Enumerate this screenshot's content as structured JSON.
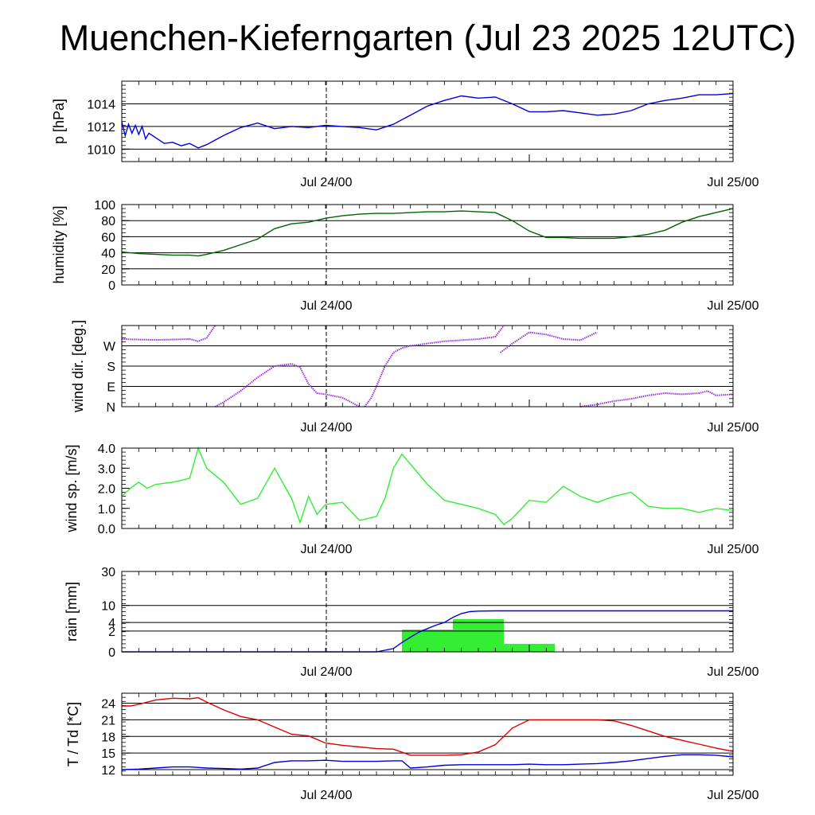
{
  "title": "Muenchen-Kieferngarten (Jul 23 2025 12UTC)",
  "colors": {
    "pressure": "#0000dd",
    "humidity": "#006400",
    "wind_dir": "#9a30d8",
    "wind_speed": "#33ee33",
    "rain_bar": "#33ee33",
    "rain_cum": "#0000dd",
    "temperature": "#dd0000",
    "dewpoint": "#0000dd"
  },
  "chart_data": [
    {
      "type": "line",
      "name": "pressure",
      "ylabel": "p [hPa]",
      "ylim": [
        1008.9,
        1016.0
      ],
      "y_ticks": [
        1010,
        1012,
        1014
      ],
      "y_tick_labels": [
        "1010",
        "1012",
        "1014"
      ],
      "grid_y": [
        1010,
        1012,
        1014
      ],
      "x_tick_labels": [
        "Jul 24/00",
        "Jul 25/00"
      ],
      "x_range_h": [
        0,
        36
      ],
      "series": [
        {
          "color_key": "pressure",
          "x": [
            0,
            0.2,
            0.4,
            0.6,
            0.8,
            1,
            1.2,
            1.4,
            1.6,
            2,
            2.5,
            3,
            3.5,
            4,
            4.5,
            5,
            5.5,
            6,
            7,
            8,
            9,
            10,
            11,
            12,
            13,
            14,
            15,
            16,
            17,
            18,
            19,
            20,
            21,
            22,
            23,
            24,
            25,
            26,
            27,
            28,
            29,
            30,
            31,
            32,
            33,
            34,
            35,
            36
          ],
          "y": [
            1012.4,
            1011.2,
            1012.2,
            1011.4,
            1012.1,
            1011.3,
            1012.0,
            1010.9,
            1011.4,
            1011.0,
            1010.5,
            1010.6,
            1010.3,
            1010.5,
            1010.1,
            1010.4,
            1010.8,
            1011.2,
            1011.9,
            1012.3,
            1011.8,
            1012.0,
            1011.9,
            1012.1,
            1012.0,
            1011.9,
            1011.7,
            1012.2,
            1013.0,
            1013.8,
            1014.3,
            1014.7,
            1014.5,
            1014.6,
            1014.0,
            1013.3,
            1013.3,
            1013.4,
            1013.2,
            1013.0,
            1013.1,
            1013.4,
            1014.0,
            1014.3,
            1014.5,
            1014.8,
            1014.8,
            1014.9
          ]
        }
      ]
    },
    {
      "type": "line",
      "name": "humidity",
      "ylabel": "humidity [%]",
      "ylim": [
        0,
        100
      ],
      "y_ticks": [
        0,
        20,
        40,
        60,
        80,
        100
      ],
      "y_tick_labels": [
        "0",
        "20",
        "40",
        "60",
        "80",
        "100"
      ],
      "grid_y": [
        20,
        40,
        60,
        80
      ],
      "x_tick_labels": [
        "Jul 24/00",
        "Jul 25/00"
      ],
      "x_range_h": [
        0,
        36
      ],
      "series": [
        {
          "color_key": "humidity",
          "x": [
            0,
            1,
            2,
            3,
            4,
            4.5,
            5,
            6,
            7,
            8,
            9,
            10,
            11,
            12,
            13,
            14,
            15,
            16,
            17,
            18,
            19,
            20,
            21,
            22,
            23,
            24,
            25,
            26,
            27,
            28,
            29,
            30,
            31,
            32,
            33,
            34,
            35,
            36
          ],
          "y": [
            41,
            39,
            38,
            37,
            37,
            36,
            38,
            43,
            50,
            57,
            70,
            76,
            78,
            83,
            86,
            88,
            89,
            89,
            90,
            91,
            91,
            92,
            91,
            90,
            80,
            67,
            59,
            59,
            58,
            58,
            58,
            60,
            63,
            68,
            78,
            85,
            90,
            95
          ]
        }
      ]
    },
    {
      "type": "scatter",
      "name": "wind_direction",
      "ylabel": "wind dir. [deg.]",
      "ylim": [
        0,
        360
      ],
      "y_ticks": [
        0,
        90,
        180,
        270
      ],
      "y_tick_labels": [
        "N",
        "E",
        "S",
        "W"
      ],
      "grid_y": [
        90,
        180,
        270
      ],
      "x_tick_labels": [
        "Jul 24/00",
        "Jul 25/00"
      ],
      "x_range_h": [
        0,
        36
      ],
      "segments": [
        {
          "x": [
            0,
            1,
            2,
            3,
            4,
            4.5,
            5,
            5.5
          ],
          "y": [
            300,
            298,
            296,
            298,
            300,
            290,
            305,
            360
          ]
        },
        {
          "x": [
            5.5,
            6,
            7,
            8,
            9,
            9.5,
            10,
            10.5,
            11,
            11.5,
            12,
            13,
            13.5,
            14
          ],
          "y": [
            0,
            20,
            70,
            130,
            180,
            185,
            190,
            175,
            100,
            60,
            55,
            40,
            20,
            0
          ]
        },
        {
          "x": [
            14.3,
            14.7,
            15,
            15.5,
            16,
            16.5,
            17,
            18,
            19,
            20,
            21,
            22,
            22.5
          ],
          "y": [
            0,
            40,
            90,
            180,
            240,
            260,
            270,
            280,
            290,
            295,
            300,
            310,
            360
          ]
        },
        {
          "x": [
            22.3,
            23,
            23.6,
            24,
            25,
            26,
            27,
            28
          ],
          "y": [
            240,
            280,
            310,
            330,
            320,
            300,
            295,
            330
          ]
        },
        {
          "x": [
            27,
            28,
            29,
            30,
            31,
            32,
            33,
            34,
            34.5,
            35,
            36
          ],
          "y": [
            0,
            10,
            25,
            35,
            50,
            60,
            55,
            60,
            70,
            50,
            55
          ]
        }
      ]
    },
    {
      "type": "line",
      "name": "wind_speed",
      "ylabel": "wind sp. [m/s]",
      "ylim": [
        0,
        4.0
      ],
      "y_ticks": [
        0,
        1,
        2,
        3,
        4
      ],
      "y_tick_labels": [
        "0.0",
        "1.0",
        "2.0",
        "3.0",
        "4.0"
      ],
      "grid_y": [],
      "x_tick_labels": [
        "Jul 24/00",
        "Jul 25/00"
      ],
      "x_range_h": [
        0,
        36
      ],
      "series": [
        {
          "color_key": "wind_speed",
          "x": [
            0,
            0.5,
            1,
            1.5,
            2,
            3,
            4,
            4.5,
            5,
            6,
            7,
            8,
            9,
            10,
            10.5,
            11,
            11.5,
            12,
            13,
            14,
            15,
            15.5,
            16,
            16.5,
            17,
            18,
            19,
            20,
            21,
            22,
            22.5,
            23,
            24,
            25,
            26,
            27,
            28,
            29,
            30,
            31,
            32,
            33,
            34,
            35,
            36
          ],
          "y": [
            1.6,
            2.0,
            2.3,
            2.0,
            2.2,
            2.3,
            2.5,
            4.0,
            3.0,
            2.3,
            1.2,
            1.5,
            3.0,
            1.5,
            0.3,
            1.6,
            0.7,
            1.2,
            1.3,
            0.4,
            0.6,
            1.5,
            3.0,
            3.7,
            3.2,
            2.2,
            1.4,
            1.2,
            1.0,
            0.7,
            0.2,
            0.5,
            1.4,
            1.3,
            2.1,
            1.6,
            1.3,
            1.6,
            1.8,
            1.1,
            1.0,
            1.0,
            0.8,
            1.0,
            0.9
          ]
        }
      ]
    },
    {
      "type": "bar",
      "name": "rain",
      "ylabel": "rain [mm]",
      "y_scale": "sqrt",
      "ylim": [
        0,
        30
      ],
      "y_ticks": [
        0,
        2,
        4,
        10,
        30
      ],
      "y_tick_labels": [
        "0",
        "2",
        "4",
        "10",
        "30"
      ],
      "grid_y": [
        2,
        4,
        10
      ],
      "x_tick_labels": [
        "Jul 24/00",
        "Jul 25/00"
      ],
      "x_range_h": [
        0,
        36
      ],
      "bars": [
        {
          "x0": 16.5,
          "x1": 19.5,
          "value": 2.3
        },
        {
          "x0": 19.5,
          "x1": 22.5,
          "value": 5.0
        },
        {
          "x0": 22.5,
          "x1": 25.5,
          "value": 0.3
        }
      ],
      "cumulative": {
        "color_key": "rain_cum",
        "x": [
          0,
          15,
          16,
          16.5,
          17,
          17.5,
          18,
          18.5,
          19,
          19.5,
          20,
          20.5,
          21,
          22,
          23,
          24,
          36
        ],
        "y": [
          0,
          0,
          0.05,
          0.4,
          1.0,
          1.8,
          2.5,
          3.3,
          4.0,
          5.5,
          6.8,
          7.5,
          7.7,
          7.8,
          7.8,
          7.8,
          7.8
        ]
      }
    },
    {
      "type": "line",
      "name": "temperature_dewpoint",
      "ylabel": "T / Td [*C]",
      "ylim": [
        11,
        25.8
      ],
      "y_ticks": [
        12,
        15,
        18,
        21,
        24
      ],
      "y_tick_labels": [
        "12",
        "15",
        "18",
        "21",
        "24"
      ],
      "grid_y": [
        12,
        15,
        18,
        21,
        24
      ],
      "x_tick_labels": [
        "Jul 24/00",
        "Jul 25/00"
      ],
      "x_range_h": [
        0,
        36
      ],
      "series": [
        {
          "color_key": "temperature",
          "x": [
            0,
            0.5,
            1,
            2,
            3,
            4,
            4.5,
            5,
            6,
            7,
            8,
            9,
            10,
            11,
            12,
            13,
            14,
            15,
            16,
            17,
            18,
            19,
            20,
            21,
            22,
            23,
            24,
            25,
            26,
            27,
            28,
            29,
            30,
            31,
            32,
            33,
            34,
            35,
            36
          ],
          "y": [
            23.5,
            23.5,
            23.8,
            24.6,
            24.9,
            24.8,
            25.0,
            24.2,
            22.8,
            21.6,
            21.0,
            19.7,
            18.4,
            18.1,
            16.8,
            16.4,
            16.1,
            15.8,
            15.7,
            14.6,
            14.6,
            14.6,
            14.7,
            15.2,
            16.5,
            19.5,
            21.0,
            21.0,
            21.0,
            21.0,
            21.0,
            20.8,
            20.0,
            19.0,
            18.0,
            17.3,
            16.6,
            15.9,
            15.3
          ]
        },
        {
          "color_key": "dewpoint",
          "x": [
            0,
            1,
            2,
            3,
            4,
            5,
            6,
            7,
            8,
            9,
            10,
            11,
            12,
            13,
            14,
            15,
            16,
            16.5,
            17,
            18,
            19,
            20,
            21,
            22,
            23,
            24,
            25,
            26,
            27,
            28,
            29,
            30,
            31,
            32,
            33,
            34,
            35,
            36
          ],
          "y": [
            12.0,
            12.1,
            12.3,
            12.5,
            12.5,
            12.3,
            12.2,
            12.1,
            12.3,
            13.3,
            13.6,
            13.6,
            13.7,
            13.5,
            13.5,
            13.5,
            13.6,
            13.6,
            12.3,
            12.5,
            12.8,
            12.9,
            12.9,
            12.9,
            12.9,
            13.0,
            12.9,
            12.9,
            13.0,
            13.1,
            13.3,
            13.6,
            14.0,
            14.4,
            14.7,
            14.7,
            14.6,
            14.3
          ]
        }
      ]
    }
  ]
}
